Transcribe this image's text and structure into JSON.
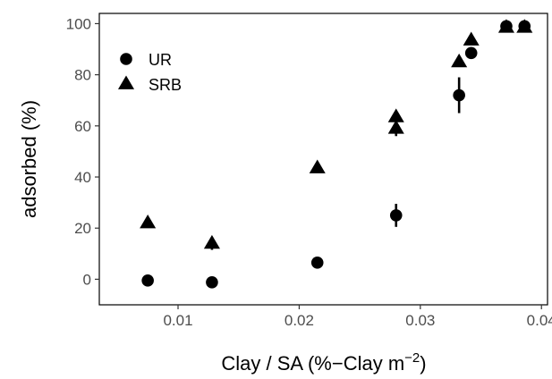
{
  "chart_data": {
    "type": "scatter",
    "xlabel_main": "Clay / SA (%−Clay m",
    "xlabel_sup": "−2",
    "xlabel_close": ")",
    "ylabel": "adsorbed (%)",
    "xlim": [
      0.0035,
      0.0405
    ],
    "ylim": [
      -10,
      104
    ],
    "x_ticks": [
      0.01,
      0.02,
      0.03,
      0.04
    ],
    "x_tick_labels": [
      "0.01",
      "0.02",
      "0.03",
      "0.04"
    ],
    "y_ticks": [
      0,
      20,
      40,
      60,
      80,
      100
    ],
    "y_tick_labels": [
      "0",
      "20",
      "40",
      "60",
      "80",
      "100"
    ],
    "grid": false,
    "legend_position": "top-left",
    "series": [
      {
        "name": "UR",
        "marker": "circle",
        "points": [
          {
            "x": 0.0075,
            "y": -0.5,
            "err": 0
          },
          {
            "x": 0.0128,
            "y": -1.2,
            "err": 1.5
          },
          {
            "x": 0.0215,
            "y": 6.5,
            "err": 0
          },
          {
            "x": 0.028,
            "y": 25,
            "err": 4.5
          },
          {
            "x": 0.0332,
            "y": 72,
            "err": 7
          },
          {
            "x": 0.0342,
            "y": 88.5,
            "err": 1.5
          },
          {
            "x": 0.0371,
            "y": 99,
            "err": 1
          },
          {
            "x": 0.0386,
            "y": 99,
            "err": 0
          }
        ]
      },
      {
        "name": "SRB",
        "marker": "triangle",
        "points": [
          {
            "x": 0.0075,
            "y": 22,
            "err": 0
          },
          {
            "x": 0.0128,
            "y": 14,
            "err": 2.5
          },
          {
            "x": 0.0215,
            "y": 43.5,
            "err": 0
          },
          {
            "x": 0.028,
            "y": 63.5,
            "err": 0
          },
          {
            "x": 0.028,
            "y": 59,
            "err": 3
          },
          {
            "x": 0.0332,
            "y": 85,
            "err": 1.5
          },
          {
            "x": 0.0342,
            "y": 93.5,
            "err": 1
          },
          {
            "x": 0.0371,
            "y": 98.5,
            "err": 0
          },
          {
            "x": 0.0386,
            "y": 98.5,
            "err": 0
          }
        ]
      }
    ]
  }
}
